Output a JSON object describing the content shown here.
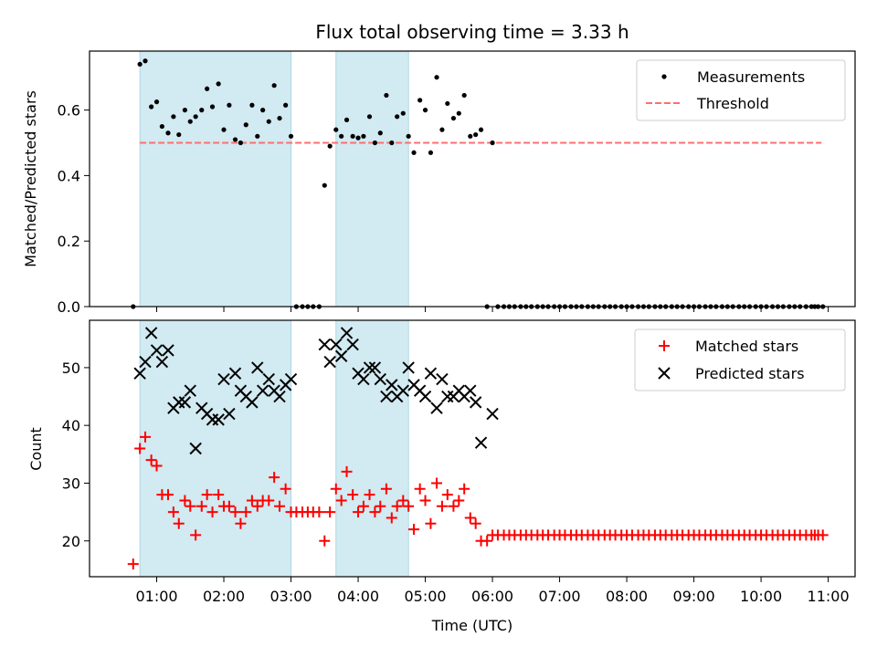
{
  "chart_data": {
    "title": "Flux total observing time = 3.33 h",
    "xlabel": "Time (UTC)",
    "x_ticks": [
      "01:00",
      "02:00",
      "03:00",
      "04:00",
      "05:00",
      "06:00",
      "07:00",
      "08:00",
      "09:00",
      "10:00",
      "11:00"
    ],
    "colors": {
      "measure": "#000000",
      "threshold": "#ff6e6e",
      "matched": "#ff0000",
      "predicted": "#000000",
      "span": "#add8e6"
    },
    "spans_hours": [
      [
        0.75,
        3.0
      ],
      [
        3.67,
        4.75
      ]
    ],
    "top_panel": {
      "type": "scatter",
      "ylabel": "Matched/Predicted stars",
      "ylim": [
        0,
        0.78
      ],
      "y_ticks": [
        "0.0",
        "0.2",
        "0.4",
        "0.6"
      ],
      "threshold": {
        "value": 0.5,
        "x_range": [
          0.75,
          10.9
        ]
      },
      "legend": {
        "location": "top-right",
        "measurements": "Measurements",
        "threshold": "Threshold"
      },
      "measurements": [
        [
          0.65,
          0.0
        ],
        [
          0.75,
          0.74
        ],
        [
          0.83,
          0.75
        ],
        [
          0.92,
          0.61
        ],
        [
          1.0,
          0.625
        ],
        [
          1.08,
          0.55
        ],
        [
          1.17,
          0.53
        ],
        [
          1.25,
          0.58
        ],
        [
          1.33,
          0.525
        ],
        [
          1.42,
          0.6
        ],
        [
          1.5,
          0.565
        ],
        [
          1.58,
          0.58
        ],
        [
          1.67,
          0.6
        ],
        [
          1.75,
          0.665
        ],
        [
          1.83,
          0.61
        ],
        [
          1.92,
          0.68
        ],
        [
          2.0,
          0.54
        ],
        [
          2.08,
          0.615
        ],
        [
          2.17,
          0.51
        ],
        [
          2.25,
          0.5
        ],
        [
          2.33,
          0.555
        ],
        [
          2.42,
          0.615
        ],
        [
          2.5,
          0.52
        ],
        [
          2.58,
          0.6
        ],
        [
          2.67,
          0.565
        ],
        [
          2.75,
          0.675
        ],
        [
          2.83,
          0.575
        ],
        [
          2.92,
          0.615
        ],
        [
          3.0,
          0.52
        ],
        [
          3.08,
          0.0
        ],
        [
          3.17,
          0.0
        ],
        [
          3.25,
          0.0
        ],
        [
          3.33,
          0.0
        ],
        [
          3.42,
          0.0
        ],
        [
          3.5,
          0.37
        ],
        [
          3.58,
          0.49
        ],
        [
          3.67,
          0.54
        ],
        [
          3.75,
          0.52
        ],
        [
          3.83,
          0.57
        ],
        [
          3.92,
          0.52
        ],
        [
          4.0,
          0.515
        ],
        [
          4.08,
          0.52
        ],
        [
          4.17,
          0.58
        ],
        [
          4.25,
          0.5
        ],
        [
          4.33,
          0.53
        ],
        [
          4.42,
          0.645
        ],
        [
          4.5,
          0.5
        ],
        [
          4.58,
          0.58
        ],
        [
          4.67,
          0.59
        ],
        [
          4.75,
          0.52
        ],
        [
          4.83,
          0.47
        ],
        [
          4.92,
          0.63
        ],
        [
          5.0,
          0.6
        ],
        [
          5.08,
          0.47
        ],
        [
          5.17,
          0.7
        ],
        [
          5.25,
          0.54
        ],
        [
          5.33,
          0.62
        ],
        [
          5.42,
          0.575
        ],
        [
          5.5,
          0.59
        ],
        [
          5.58,
          0.645
        ],
        [
          5.67,
          0.52
        ],
        [
          5.75,
          0.525
        ],
        [
          5.83,
          0.54
        ],
        [
          5.92,
          0.0
        ],
        [
          6.0,
          0.5
        ],
        [
          6.08,
          0.0
        ],
        [
          6.17,
          0.0
        ],
        [
          6.25,
          0.0
        ],
        [
          6.33,
          0.0
        ],
        [
          6.42,
          0.0
        ],
        [
          6.5,
          0.0
        ],
        [
          6.58,
          0.0
        ],
        [
          6.67,
          0.0
        ],
        [
          6.75,
          0.0
        ],
        [
          6.83,
          0.0
        ],
        [
          6.92,
          0.0
        ],
        [
          7.0,
          0.0
        ],
        [
          7.08,
          0.0
        ],
        [
          7.17,
          0.0
        ],
        [
          7.25,
          0.0
        ],
        [
          7.33,
          0.0
        ],
        [
          7.42,
          0.0
        ],
        [
          7.5,
          0.0
        ],
        [
          7.58,
          0.0
        ],
        [
          7.67,
          0.0
        ],
        [
          7.75,
          0.0
        ],
        [
          7.83,
          0.0
        ],
        [
          7.92,
          0.0
        ],
        [
          8.0,
          0.0
        ],
        [
          8.08,
          0.0
        ],
        [
          8.17,
          0.0
        ],
        [
          8.25,
          0.0
        ],
        [
          8.33,
          0.0
        ],
        [
          8.42,
          0.0
        ],
        [
          8.5,
          0.0
        ],
        [
          8.58,
          0.0
        ],
        [
          8.67,
          0.0
        ],
        [
          8.75,
          0.0
        ],
        [
          8.83,
          0.0
        ],
        [
          8.92,
          0.0
        ],
        [
          9.0,
          0.0
        ],
        [
          9.08,
          0.0
        ],
        [
          9.17,
          0.0
        ],
        [
          9.25,
          0.0
        ],
        [
          9.33,
          0.0
        ],
        [
          9.42,
          0.0
        ],
        [
          9.5,
          0.0
        ],
        [
          9.58,
          0.0
        ],
        [
          9.67,
          0.0
        ],
        [
          9.75,
          0.0
        ],
        [
          9.83,
          0.0
        ],
        [
          9.92,
          0.0
        ],
        [
          10.0,
          0.0
        ],
        [
          10.08,
          0.0
        ],
        [
          10.17,
          0.0
        ],
        [
          10.25,
          0.0
        ],
        [
          10.33,
          0.0
        ],
        [
          10.42,
          0.0
        ],
        [
          10.5,
          0.0
        ],
        [
          10.58,
          0.0
        ],
        [
          10.67,
          0.0
        ],
        [
          10.75,
          0.0
        ],
        [
          10.8,
          0.0
        ],
        [
          10.85,
          0.0
        ],
        [
          10.92,
          0.0
        ]
      ]
    },
    "bottom_panel": {
      "type": "scatter",
      "ylabel": "Count",
      "ylim": [
        13.8,
        58.2
      ],
      "y_ticks": [
        "20",
        "30",
        "40",
        "50"
      ],
      "legend": {
        "location": "top-right",
        "matched": "Matched stars",
        "predicted": "Predicted stars"
      },
      "matched": [
        [
          0.65,
          16
        ],
        [
          0.75,
          36
        ],
        [
          0.83,
          38
        ],
        [
          0.92,
          34
        ],
        [
          1.0,
          33
        ],
        [
          1.08,
          28
        ],
        [
          1.17,
          28
        ],
        [
          1.25,
          25
        ],
        [
          1.33,
          23
        ],
        [
          1.42,
          27
        ],
        [
          1.5,
          26
        ],
        [
          1.58,
          21
        ],
        [
          1.67,
          26
        ],
        [
          1.75,
          28
        ],
        [
          1.83,
          25
        ],
        [
          1.92,
          28
        ],
        [
          2.0,
          26
        ],
        [
          2.08,
          26
        ],
        [
          2.17,
          25
        ],
        [
          2.25,
          23
        ],
        [
          2.33,
          25
        ],
        [
          2.42,
          27
        ],
        [
          2.5,
          26
        ],
        [
          2.58,
          27
        ],
        [
          2.67,
          27
        ],
        [
          2.75,
          31
        ],
        [
          2.83,
          26
        ],
        [
          2.92,
          29
        ],
        [
          3.0,
          25
        ],
        [
          3.08,
          25
        ],
        [
          3.17,
          25
        ],
        [
          3.25,
          25
        ],
        [
          3.33,
          25
        ],
        [
          3.42,
          25
        ],
        [
          3.5,
          20
        ],
        [
          3.58,
          25
        ],
        [
          3.67,
          29
        ],
        [
          3.75,
          27
        ],
        [
          3.83,
          32
        ],
        [
          3.92,
          28
        ],
        [
          4.0,
          25
        ],
        [
          4.08,
          26
        ],
        [
          4.17,
          28
        ],
        [
          4.25,
          25
        ],
        [
          4.33,
          26
        ],
        [
          4.42,
          29
        ],
        [
          4.5,
          24
        ],
        [
          4.58,
          26
        ],
        [
          4.67,
          27
        ],
        [
          4.75,
          26
        ],
        [
          4.83,
          22
        ],
        [
          4.92,
          29
        ],
        [
          5.0,
          27
        ],
        [
          5.08,
          23
        ],
        [
          5.17,
          30
        ],
        [
          5.25,
          26
        ],
        [
          5.33,
          28
        ],
        [
          5.42,
          26
        ],
        [
          5.5,
          27
        ],
        [
          5.58,
          29
        ],
        [
          5.67,
          24
        ],
        [
          5.75,
          23
        ],
        [
          5.83,
          20
        ],
        [
          5.92,
          20
        ],
        [
          6.0,
          21
        ],
        [
          6.08,
          21
        ],
        [
          6.17,
          21
        ],
        [
          6.25,
          21
        ],
        [
          6.33,
          21
        ],
        [
          6.42,
          21
        ],
        [
          6.5,
          21
        ],
        [
          6.58,
          21
        ],
        [
          6.67,
          21
        ],
        [
          6.75,
          21
        ],
        [
          6.83,
          21
        ],
        [
          6.92,
          21
        ],
        [
          7.0,
          21
        ],
        [
          7.08,
          21
        ],
        [
          7.17,
          21
        ],
        [
          7.25,
          21
        ],
        [
          7.33,
          21
        ],
        [
          7.42,
          21
        ],
        [
          7.5,
          21
        ],
        [
          7.58,
          21
        ],
        [
          7.67,
          21
        ],
        [
          7.75,
          21
        ],
        [
          7.83,
          21
        ],
        [
          7.92,
          21
        ],
        [
          8.0,
          21
        ],
        [
          8.08,
          21
        ],
        [
          8.17,
          21
        ],
        [
          8.25,
          21
        ],
        [
          8.33,
          21
        ],
        [
          8.42,
          21
        ],
        [
          8.5,
          21
        ],
        [
          8.58,
          21
        ],
        [
          8.67,
          21
        ],
        [
          8.75,
          21
        ],
        [
          8.83,
          21
        ],
        [
          8.92,
          21
        ],
        [
          9.0,
          21
        ],
        [
          9.08,
          21
        ],
        [
          9.17,
          21
        ],
        [
          9.25,
          21
        ],
        [
          9.33,
          21
        ],
        [
          9.42,
          21
        ],
        [
          9.5,
          21
        ],
        [
          9.58,
          21
        ],
        [
          9.67,
          21
        ],
        [
          9.75,
          21
        ],
        [
          9.83,
          21
        ],
        [
          9.92,
          21
        ],
        [
          10.0,
          21
        ],
        [
          10.08,
          21
        ],
        [
          10.17,
          21
        ],
        [
          10.25,
          21
        ],
        [
          10.33,
          21
        ],
        [
          10.42,
          21
        ],
        [
          10.5,
          21
        ],
        [
          10.58,
          21
        ],
        [
          10.67,
          21
        ],
        [
          10.75,
          21
        ],
        [
          10.8,
          21
        ],
        [
          10.85,
          21
        ],
        [
          10.92,
          21
        ]
      ],
      "predicted": [
        [
          0.75,
          49
        ],
        [
          0.83,
          51
        ],
        [
          0.92,
          56
        ],
        [
          1.0,
          53
        ],
        [
          1.08,
          51
        ],
        [
          1.17,
          53
        ],
        [
          1.25,
          43
        ],
        [
          1.33,
          44
        ],
        [
          1.42,
          44
        ],
        [
          1.5,
          46
        ],
        [
          1.58,
          36
        ],
        [
          1.67,
          43
        ],
        [
          1.75,
          42
        ],
        [
          1.83,
          41
        ],
        [
          1.92,
          41
        ],
        [
          2.0,
          48
        ],
        [
          2.08,
          42
        ],
        [
          2.17,
          49
        ],
        [
          2.25,
          46
        ],
        [
          2.33,
          45
        ],
        [
          2.42,
          44
        ],
        [
          2.5,
          50
        ],
        [
          2.58,
          46
        ],
        [
          2.67,
          48
        ],
        [
          2.75,
          46
        ],
        [
          2.83,
          45
        ],
        [
          2.92,
          47
        ],
        [
          3.0,
          48
        ],
        [
          3.5,
          54
        ],
        [
          3.58,
          51
        ],
        [
          3.67,
          54
        ],
        [
          3.75,
          52
        ],
        [
          3.83,
          56
        ],
        [
          3.92,
          54
        ],
        [
          4.0,
          49
        ],
        [
          4.08,
          48
        ],
        [
          4.17,
          50
        ],
        [
          4.25,
          50
        ],
        [
          4.33,
          48
        ],
        [
          4.42,
          45
        ],
        [
          4.5,
          47
        ],
        [
          4.58,
          45
        ],
        [
          4.67,
          46
        ],
        [
          4.75,
          50
        ],
        [
          4.83,
          47
        ],
        [
          4.92,
          46
        ],
        [
          5.0,
          45
        ],
        [
          5.08,
          49
        ],
        [
          5.17,
          43
        ],
        [
          5.25,
          48
        ],
        [
          5.33,
          45
        ],
        [
          5.42,
          45
        ],
        [
          5.5,
          46
        ],
        [
          5.58,
          45
        ],
        [
          5.67,
          46
        ],
        [
          5.75,
          44
        ],
        [
          5.83,
          37
        ],
        [
          6.0,
          42
        ]
      ]
    }
  }
}
